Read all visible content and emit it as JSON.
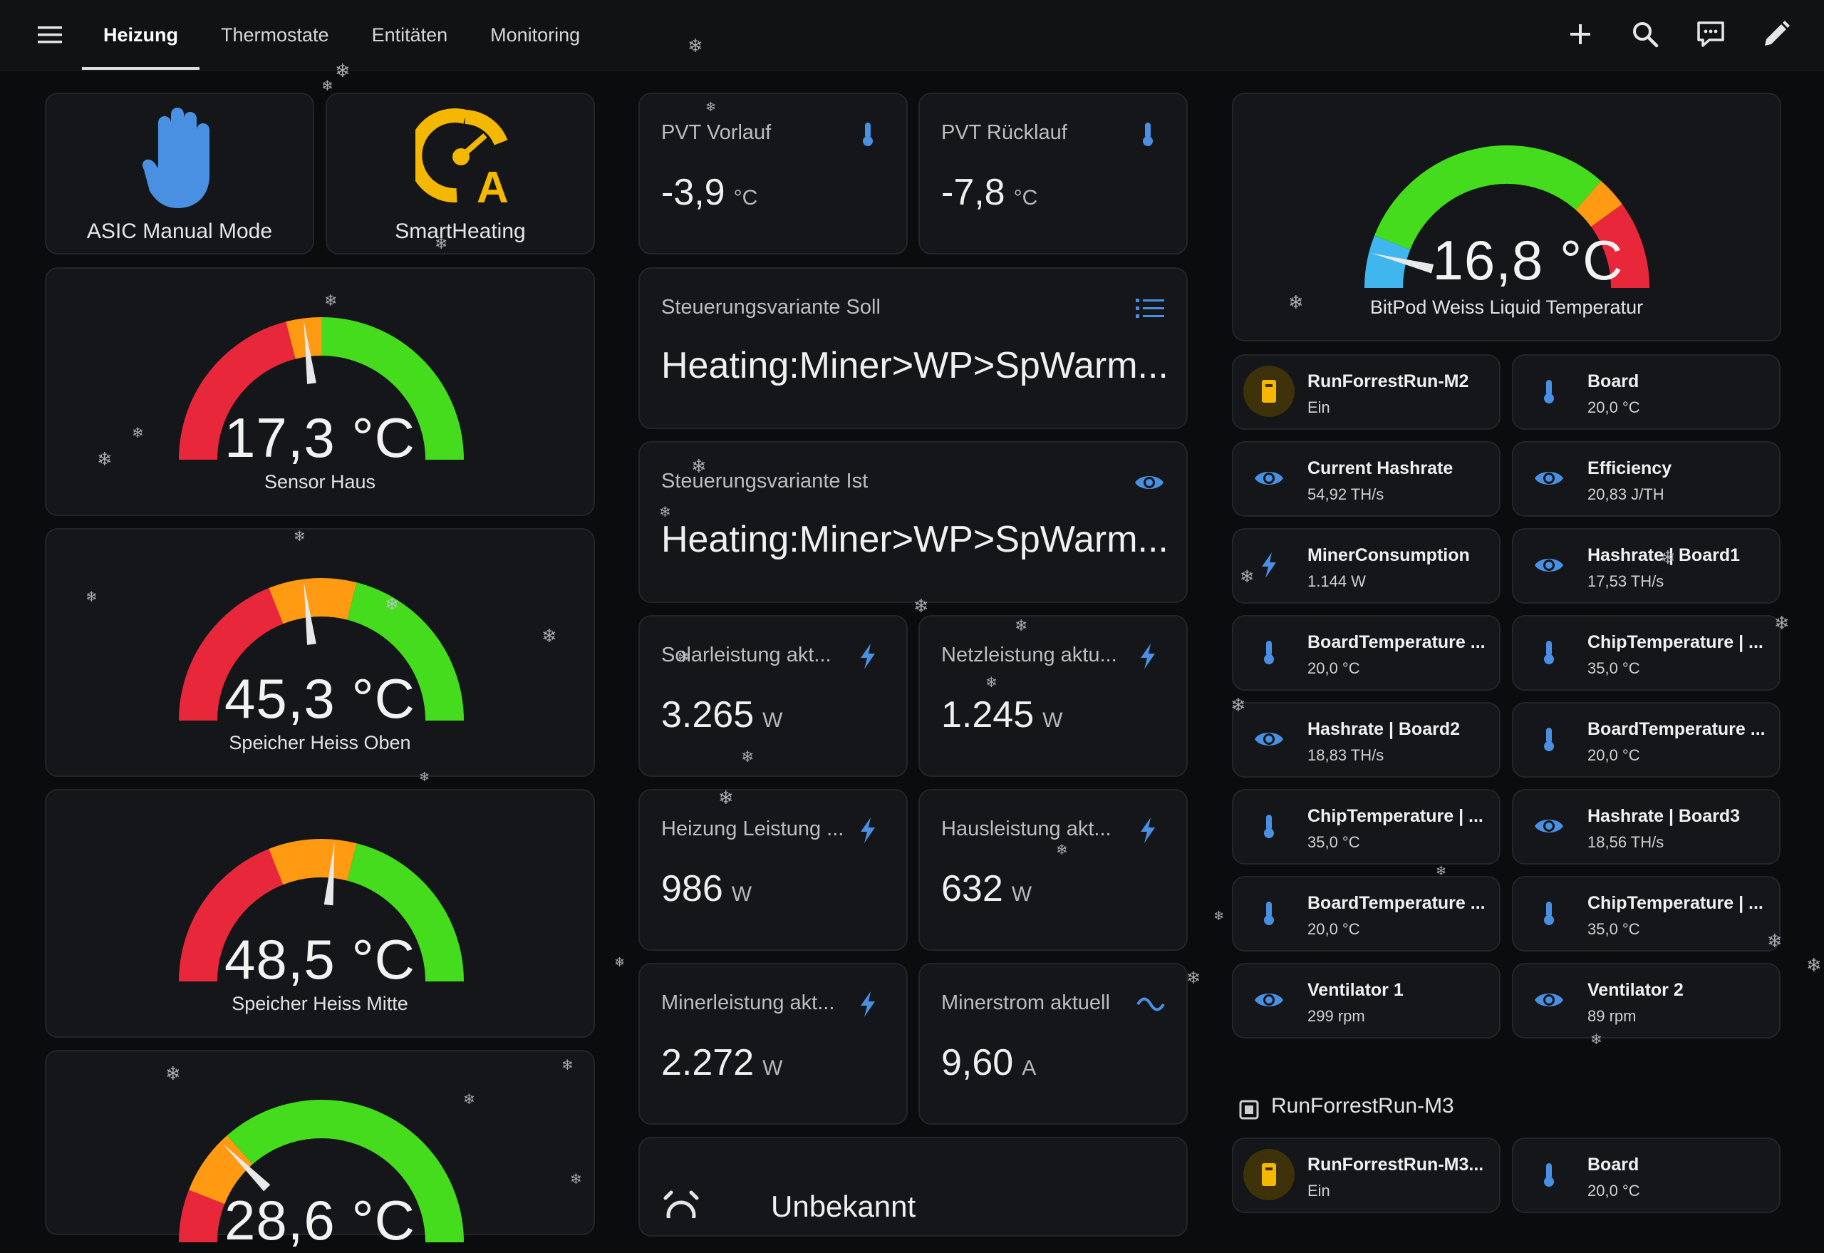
{
  "tabs": [
    {
      "label": "Heizung",
      "active": true
    },
    {
      "label": "Thermostate",
      "active": false
    },
    {
      "label": "Entitäten",
      "active": false
    },
    {
      "label": "Monitoring",
      "active": false
    }
  ],
  "toolbar": {
    "icons": [
      "plus-icon",
      "search-icon",
      "assist-chat-icon",
      "pencil-icon"
    ]
  },
  "buttons": [
    {
      "label": "ASIC Manual Mode",
      "icon": "hand-icon",
      "color": "#4a90e2"
    },
    {
      "label": "SmartHeating",
      "icon": "auto-gauge-icon",
      "color": "#f5b800"
    }
  ],
  "gauges": [
    {
      "value": "17,3 °C",
      "label": "Sensor Haus",
      "fraction": 0.46
    },
    {
      "value": "45,3 °C",
      "label": "Speicher Heiss Oben",
      "fraction": 0.46
    },
    {
      "value": "48,5 °C",
      "label": "Speicher Heiss Mitte",
      "fraction": 0.53
    },
    {
      "value": "28,6 °C",
      "label": "",
      "fraction": 0.25
    }
  ],
  "sensors": {
    "pvt_vorlauf": {
      "name": "PVT Vorlauf",
      "value": "-3,9",
      "unit": "°C",
      "icon": "thermometer-icon"
    },
    "pvt_ruecklauf": {
      "name": "PVT Rücklauf",
      "value": "-7,8",
      "unit": "°C",
      "icon": "thermometer-icon"
    },
    "solar": {
      "name": "Solarleistung akt...",
      "value": "3.265",
      "unit": "W",
      "icon": "flash-icon"
    },
    "netz": {
      "name": "Netzleistung aktu...",
      "value": "1.245",
      "unit": "W",
      "icon": "flash-icon"
    },
    "heizung": {
      "name": "Heizung Leistung ...",
      "value": "986",
      "unit": "W",
      "icon": "flash-icon"
    },
    "haus": {
      "name": "Hausleistung akt...",
      "value": "632",
      "unit": "W",
      "icon": "flash-icon"
    },
    "miner": {
      "name": "Minerleistung akt...",
      "value": "2.272",
      "unit": "W",
      "icon": "flash-icon"
    },
    "minerstrom": {
      "name": "Minerstrom aktuell",
      "value": "9,60",
      "unit": "A",
      "icon": "current-ac-icon"
    }
  },
  "selects": {
    "soll": {
      "title": "Steuerungsvariante Soll",
      "value": "Heating:Miner>WP>SpWarm..."
    },
    "ist": {
      "title": "Steuerungsvariante Ist",
      "value": "Heating:Miner>WP>SpWarm..."
    }
  },
  "bottom_card": {
    "value": "Unbekannt"
  },
  "bitpod": {
    "value": "16,8 °C",
    "label": "BitPod Weiss Liquid Temperatur",
    "fraction": 0.08
  },
  "tiles_m2": [
    {
      "name": "RunForrestRun-M2",
      "state": "Ein",
      "icon": "miner-icon"
    },
    {
      "name": "Board",
      "state": "20,0 °C",
      "icon": "thermometer-icon"
    },
    {
      "name": "Current Hashrate",
      "state": "54,92 TH/s",
      "icon": "eye-icon"
    },
    {
      "name": "Efficiency",
      "state": "20,83 J/TH",
      "icon": "eye-icon"
    },
    {
      "name": "MinerConsumption",
      "state": "1.144 W",
      "icon": "flash-icon"
    },
    {
      "name": "Hashrate | Board1",
      "state": "17,53 TH/s",
      "icon": "eye-icon"
    },
    {
      "name": "BoardTemperature ...",
      "state": "20,0 °C",
      "icon": "thermometer-icon"
    },
    {
      "name": "ChipTemperature | ...",
      "state": "35,0 °C",
      "icon": "thermometer-icon"
    },
    {
      "name": "Hashrate | Board2",
      "state": "18,83 TH/s",
      "icon": "eye-icon"
    },
    {
      "name": "BoardTemperature ...",
      "state": "20,0 °C",
      "icon": "thermometer-icon"
    },
    {
      "name": "ChipTemperature | ...",
      "state": "35,0 °C",
      "icon": "thermometer-icon"
    },
    {
      "name": "Hashrate | Board3",
      "state": "18,56 TH/s",
      "icon": "eye-icon"
    },
    {
      "name": "BoardTemperature ...",
      "state": "20,0 °C",
      "icon": "thermometer-icon"
    },
    {
      "name": "ChipTemperature | ...",
      "state": "35,0 °C",
      "icon": "thermometer-icon"
    },
    {
      "name": "Ventilator 1",
      "state": "299 rpm",
      "icon": "eye-icon"
    },
    {
      "name": "Ventilator 2",
      "state": "89 rpm",
      "icon": "eye-icon"
    }
  ],
  "section_m3": {
    "title": "RunForrestRun-M3",
    "icon": "chip-icon"
  },
  "tiles_m3": [
    {
      "name": "RunForrestRun-M3...",
      "state": "Ein",
      "icon": "miner-icon"
    },
    {
      "name": "Board",
      "state": "20,0 °C",
      "icon": "thermometer-icon"
    }
  ],
  "colors": {
    "accent": "#4a90e2",
    "gauge_red": "#e8273a",
    "gauge_orange": "#ff9a12",
    "gauge_green": "#44dc1c",
    "gauge_blue": "#3fb6ee",
    "card_bg": "#141619"
  }
}
